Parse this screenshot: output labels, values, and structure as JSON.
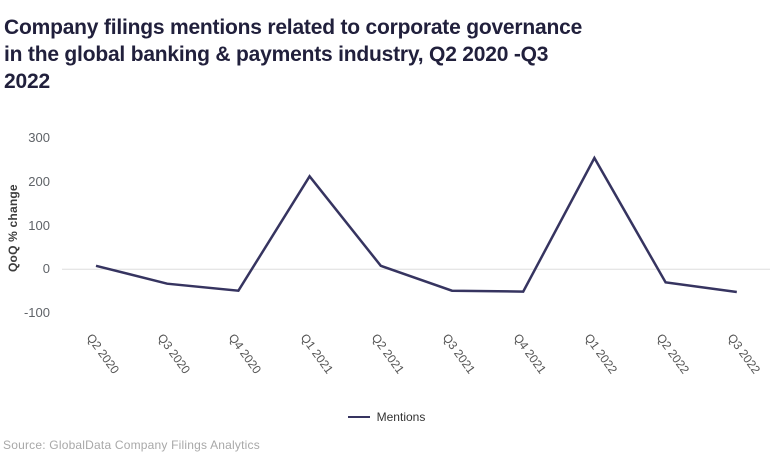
{
  "title": {
    "full": "Company filings mentions related to corporate governance in the global banking & payments industry, Q2 2020 -Q3 2022",
    "lines": [
      "Company filings mentions related to corporate governance",
      "in the global banking & payments industry, Q2 2020 -Q3",
      "2022"
    ]
  },
  "y_axis": {
    "label": "QoQ % change"
  },
  "legend": {
    "items": [
      {
        "label": "Mentions",
        "color": "#363460"
      }
    ]
  },
  "source": "Source: GlobalData Company Filings Analytics",
  "colors": {
    "line": "#363460",
    "title_text": "#21203c",
    "grid_line": "#dddddd",
    "tick_text": "#5f6368",
    "source_text": "#a8a8a8"
  },
  "chart_data": {
    "type": "line",
    "title": "Company filings mentions related to corporate governance in the global banking & payments industry, Q2 2020 -Q3 2022",
    "categories": [
      "Q2 2020",
      "Q3 2020",
      "Q4 2020",
      "Q1 2021",
      "Q2 2021",
      "Q3 2021",
      "Q4 2021",
      "Q1 2022",
      "Q2 2022",
      "Q3 2022"
    ],
    "series": [
      {
        "name": "Mentions",
        "values": [
          8,
          -33,
          -49,
          213,
          8,
          -49,
          -51,
          255,
          -30,
          -52
        ]
      }
    ],
    "xlabel": "",
    "ylabel": "QoQ % change",
    "ylim": [
      -100,
      300
    ],
    "yticks": [
      300,
      200,
      100,
      0,
      -100
    ],
    "grid": "horizontal line at 0 only",
    "legend_position": "bottom-center"
  }
}
